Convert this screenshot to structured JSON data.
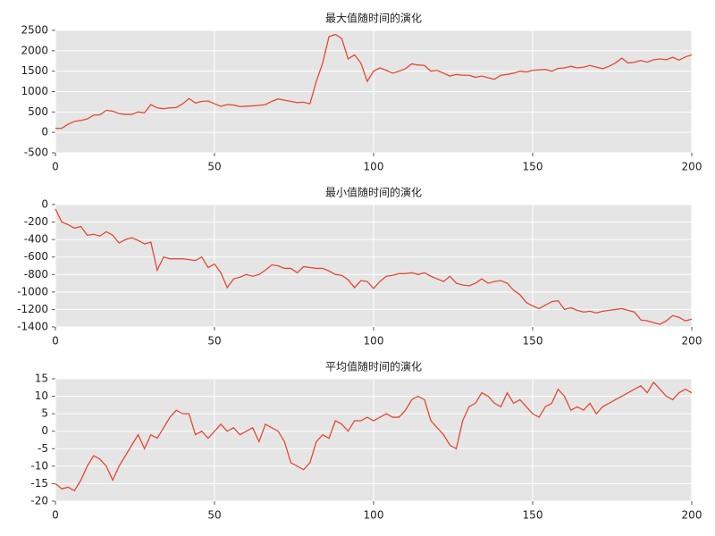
{
  "chart_data": [
    {
      "type": "line",
      "title": "最大值随时间的演化",
      "x": [
        0,
        2,
        4,
        6,
        8,
        10,
        12,
        14,
        16,
        18,
        20,
        22,
        24,
        26,
        28,
        30,
        32,
        34,
        36,
        38,
        40,
        42,
        44,
        46,
        48,
        50,
        52,
        54,
        56,
        58,
        60,
        62,
        64,
        66,
        68,
        70,
        72,
        74,
        76,
        78,
        80,
        82,
        84,
        86,
        88,
        90,
        92,
        94,
        96,
        98,
        100,
        102,
        104,
        106,
        108,
        110,
        112,
        114,
        116,
        118,
        120,
        122,
        124,
        126,
        128,
        130,
        132,
        134,
        136,
        138,
        140,
        142,
        144,
        146,
        148,
        150,
        152,
        154,
        156,
        158,
        160,
        162,
        164,
        166,
        168,
        170,
        172,
        174,
        176,
        178,
        180,
        182,
        184,
        186,
        188,
        190,
        192,
        194,
        196,
        198,
        200
      ],
      "series": [
        {
          "color": "#e24a33",
          "values": [
            100,
            100,
            200,
            270,
            290,
            330,
            420,
            430,
            540,
            520,
            460,
            440,
            440,
            500,
            480,
            680,
            600,
            580,
            600,
            610,
            700,
            830,
            720,
            760,
            770,
            700,
            640,
            680,
            670,
            630,
            640,
            650,
            660,
            680,
            760,
            820,
            790,
            760,
            730,
            740,
            700,
            1250,
            1700,
            2350,
            2400,
            2300,
            1800,
            1900,
            1700,
            1250,
            1500,
            1580,
            1520,
            1450,
            1500,
            1560,
            1680,
            1650,
            1640,
            1500,
            1520,
            1450,
            1380,
            1420,
            1400,
            1400,
            1350,
            1380,
            1340,
            1300,
            1400,
            1420,
            1450,
            1500,
            1480,
            1520,
            1530,
            1540,
            1500,
            1570,
            1580,
            1620,
            1580,
            1600,
            1640,
            1600,
            1560,
            1620,
            1700,
            1820,
            1700,
            1720,
            1760,
            1720,
            1780,
            1800,
            1780,
            1840,
            1770,
            1850,
            1900
          ]
        }
      ],
      "xlim": [
        0,
        200
      ],
      "xticks": [
        0,
        50,
        100,
        150,
        200
      ],
      "ylim": [
        -500,
        2500
      ],
      "yticks": [
        -500,
        0,
        500,
        1000,
        1500,
        2000,
        2500
      ],
      "grid": true
    },
    {
      "type": "line",
      "title": "最小值随时间的演化",
      "x": [
        0,
        2,
        4,
        6,
        8,
        10,
        12,
        14,
        16,
        18,
        20,
        22,
        24,
        26,
        28,
        30,
        32,
        34,
        36,
        38,
        40,
        42,
        44,
        46,
        48,
        50,
        52,
        54,
        56,
        58,
        60,
        62,
        64,
        66,
        68,
        70,
        72,
        74,
        76,
        78,
        80,
        82,
        84,
        86,
        88,
        90,
        92,
        94,
        96,
        98,
        100,
        102,
        104,
        106,
        108,
        110,
        112,
        114,
        116,
        118,
        120,
        122,
        124,
        126,
        128,
        130,
        132,
        134,
        136,
        138,
        140,
        142,
        144,
        146,
        148,
        150,
        152,
        154,
        156,
        158,
        160,
        162,
        164,
        166,
        168,
        170,
        172,
        174,
        176,
        178,
        180,
        182,
        184,
        186,
        188,
        190,
        192,
        194,
        196,
        198,
        200
      ],
      "series": [
        {
          "color": "#e24a33",
          "values": [
            -50,
            -200,
            -230,
            -270,
            -250,
            -350,
            -340,
            -360,
            -310,
            -350,
            -440,
            -400,
            -380,
            -410,
            -450,
            -430,
            -750,
            -600,
            -620,
            -620,
            -620,
            -630,
            -640,
            -600,
            -720,
            -680,
            -780,
            -950,
            -850,
            -830,
            -800,
            -820,
            -800,
            -750,
            -690,
            -700,
            -730,
            -730,
            -780,
            -710,
            -720,
            -730,
            -730,
            -760,
            -800,
            -810,
            -860,
            -950,
            -870,
            -880,
            -960,
            -880,
            -820,
            -810,
            -790,
            -790,
            -780,
            -800,
            -780,
            -820,
            -850,
            -880,
            -820,
            -900,
            -920,
            -930,
            -900,
            -850,
            -900,
            -880,
            -870,
            -900,
            -980,
            -1030,
            -1120,
            -1160,
            -1190,
            -1150,
            -1110,
            -1100,
            -1200,
            -1180,
            -1210,
            -1230,
            -1220,
            -1240,
            -1220,
            -1210,
            -1200,
            -1190,
            -1210,
            -1230,
            -1320,
            -1330,
            -1350,
            -1370,
            -1330,
            -1270,
            -1290,
            -1330,
            -1310
          ]
        }
      ],
      "xlim": [
        0,
        200
      ],
      "xticks": [
        0,
        50,
        100,
        150,
        200
      ],
      "ylim": [
        -1400,
        0
      ],
      "yticks": [
        -1400,
        -1200,
        -1000,
        -800,
        -600,
        -400,
        -200,
        0
      ],
      "grid": true
    },
    {
      "type": "line",
      "title": "平均值随时间的演化",
      "x": [
        0,
        2,
        4,
        6,
        8,
        10,
        12,
        14,
        16,
        18,
        20,
        22,
        24,
        26,
        28,
        30,
        32,
        34,
        36,
        38,
        40,
        42,
        44,
        46,
        48,
        50,
        52,
        54,
        56,
        58,
        60,
        62,
        64,
        66,
        68,
        70,
        72,
        74,
        76,
        78,
        80,
        82,
        84,
        86,
        88,
        90,
        92,
        94,
        96,
        98,
        100,
        102,
        104,
        106,
        108,
        110,
        112,
        114,
        116,
        118,
        120,
        122,
        124,
        126,
        128,
        130,
        132,
        134,
        136,
        138,
        140,
        142,
        144,
        146,
        148,
        150,
        152,
        154,
        156,
        158,
        160,
        162,
        164,
        166,
        168,
        170,
        172,
        174,
        176,
        178,
        180,
        182,
        184,
        186,
        188,
        190,
        192,
        194,
        196,
        198,
        200
      ],
      "series": [
        {
          "color": "#e24a33",
          "values": [
            -15,
            -16.5,
            -16,
            -17,
            -14,
            -10,
            -7,
            -8,
            -10,
            -14,
            -10,
            -7,
            -4,
            -1,
            -5,
            -1,
            -2,
            1,
            4,
            6,
            5,
            5,
            -1,
            0,
            -2,
            0,
            2,
            0,
            1,
            -1,
            0,
            1,
            -3,
            2,
            1,
            0,
            -3,
            -9,
            -10,
            -11,
            -9,
            -3,
            -1,
            -2,
            3,
            2,
            0,
            3,
            3,
            4,
            3,
            4,
            5,
            4,
            4,
            6,
            9,
            10,
            9,
            3,
            1,
            -1,
            -4,
            -5,
            3,
            7,
            8,
            11,
            10,
            8,
            7,
            11,
            8,
            9,
            7,
            5,
            4,
            7,
            8,
            12,
            10,
            6,
            7,
            6,
            8,
            5,
            7,
            8,
            9,
            10,
            11,
            12,
            13,
            11,
            14,
            12,
            10,
            9,
            11,
            12,
            11
          ]
        }
      ],
      "xlim": [
        0,
        200
      ],
      "xticks": [
        0,
        50,
        100,
        150,
        200
      ],
      "ylim": [
        -20,
        15
      ],
      "yticks": [
        -20,
        -15,
        -10,
        -5,
        0,
        5,
        10,
        15
      ],
      "grid": true
    }
  ]
}
